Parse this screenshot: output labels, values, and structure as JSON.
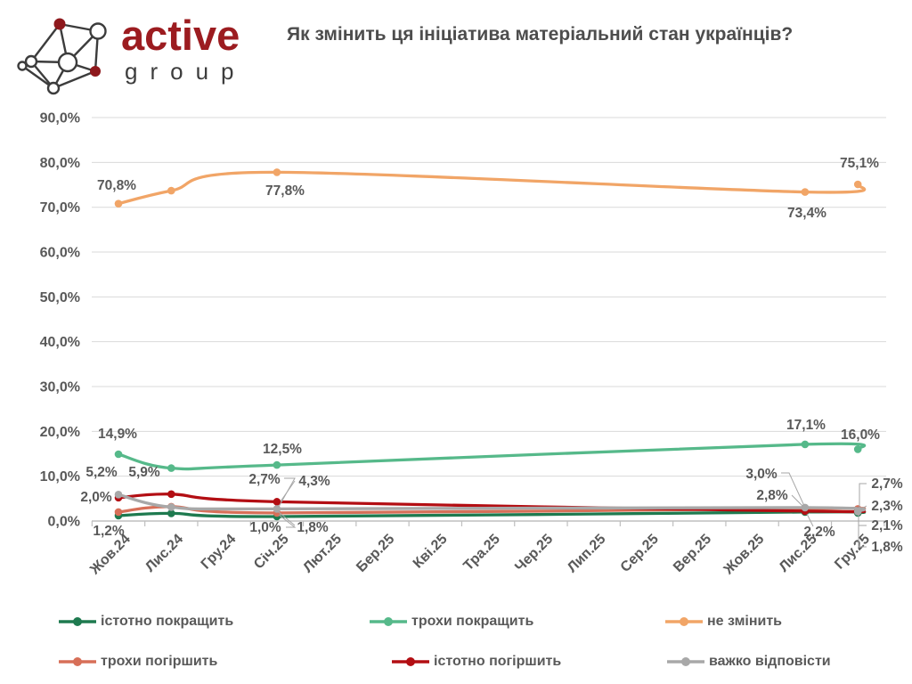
{
  "logo": {
    "brand": "active",
    "subtitle": "group"
  },
  "title": "Як змінить ця ініціатива матеріальний стан українців?",
  "chart_data": {
    "type": "line",
    "title": "Як змінить ця ініціатива матеріальний стан українців?",
    "x_categories": [
      "Жов.24",
      "Лис.24",
      "Гру.24",
      "Січ.25",
      "Лют.25",
      "Бер.25",
      "Кві.25",
      "Тра.25",
      "Чер.25",
      "Лип.25",
      "Сер.25",
      "Вер.25",
      "Жов.25",
      "Лис.25",
      "Гру.25"
    ],
    "data_month_indices": [
      0,
      1,
      3,
      13,
      14
    ],
    "ylim": [
      0,
      90
    ],
    "ytick_step": 10,
    "ytick_labels": [
      "0,0%",
      "10,0%",
      "20,0%",
      "30,0%",
      "40,0%",
      "50,0%",
      "60,0%",
      "70,0%",
      "80,0%",
      "90,0%"
    ],
    "grid": true,
    "smoothed_lines": true,
    "legend_position": "bottom",
    "series": [
      {
        "name": "істотно покращить",
        "color": "#1e7a4f",
        "values": [
          1.2,
          1.7,
          1.0,
          2.0,
          1.8
        ],
        "labels": [
          "1,2%",
          null,
          "1,0%",
          null,
          "1,8%"
        ]
      },
      {
        "name": "трохи покращить",
        "color": "#56b98a",
        "values": [
          14.9,
          11.8,
          12.5,
          17.1,
          16.0
        ],
        "labels": [
          "14,9%",
          null,
          "12,5%",
          "17,1%",
          "16,0%"
        ]
      },
      {
        "name": "не змінить",
        "color": "#f1a567",
        "values": [
          70.8,
          73.7,
          77.8,
          73.4,
          75.1
        ],
        "labels": [
          "70,8%",
          null,
          "77,8%",
          "73,4%",
          "75,1%"
        ]
      },
      {
        "name": "трохи погіршить",
        "color": "#d76f58",
        "values": [
          2.0,
          3.2,
          1.8,
          2.8,
          2.7
        ],
        "labels": [
          "2,0%",
          null,
          "1,8%",
          "2,8%",
          "2,7%"
        ]
      },
      {
        "name": "істотно погіршить",
        "color": "#b30e13",
        "values": [
          5.2,
          6.0,
          4.3,
          2.2,
          2.3
        ],
        "labels": [
          "5,2%",
          null,
          "4,3%",
          "2,2%",
          "2,3%"
        ]
      },
      {
        "name": "важко відповісти",
        "color": "#a8a8a8",
        "values": [
          5.9,
          3.1,
          2.7,
          3.0,
          2.1
        ],
        "labels": [
          "5,9%",
          null,
          "2,7%",
          "3,0%",
          "2,1%"
        ]
      }
    ],
    "colors": {
      "grid": "#d9d9d9",
      "axis": "#bfbfbf",
      "text": "#595959",
      "leader": "#a6a6a6"
    }
  },
  "legend_rows": [
    [
      "істотно покращить",
      "трохи покращить",
      "не змінить"
    ],
    [
      "трохи погіршить",
      "істотно погіршить",
      "важко відповісти"
    ]
  ]
}
